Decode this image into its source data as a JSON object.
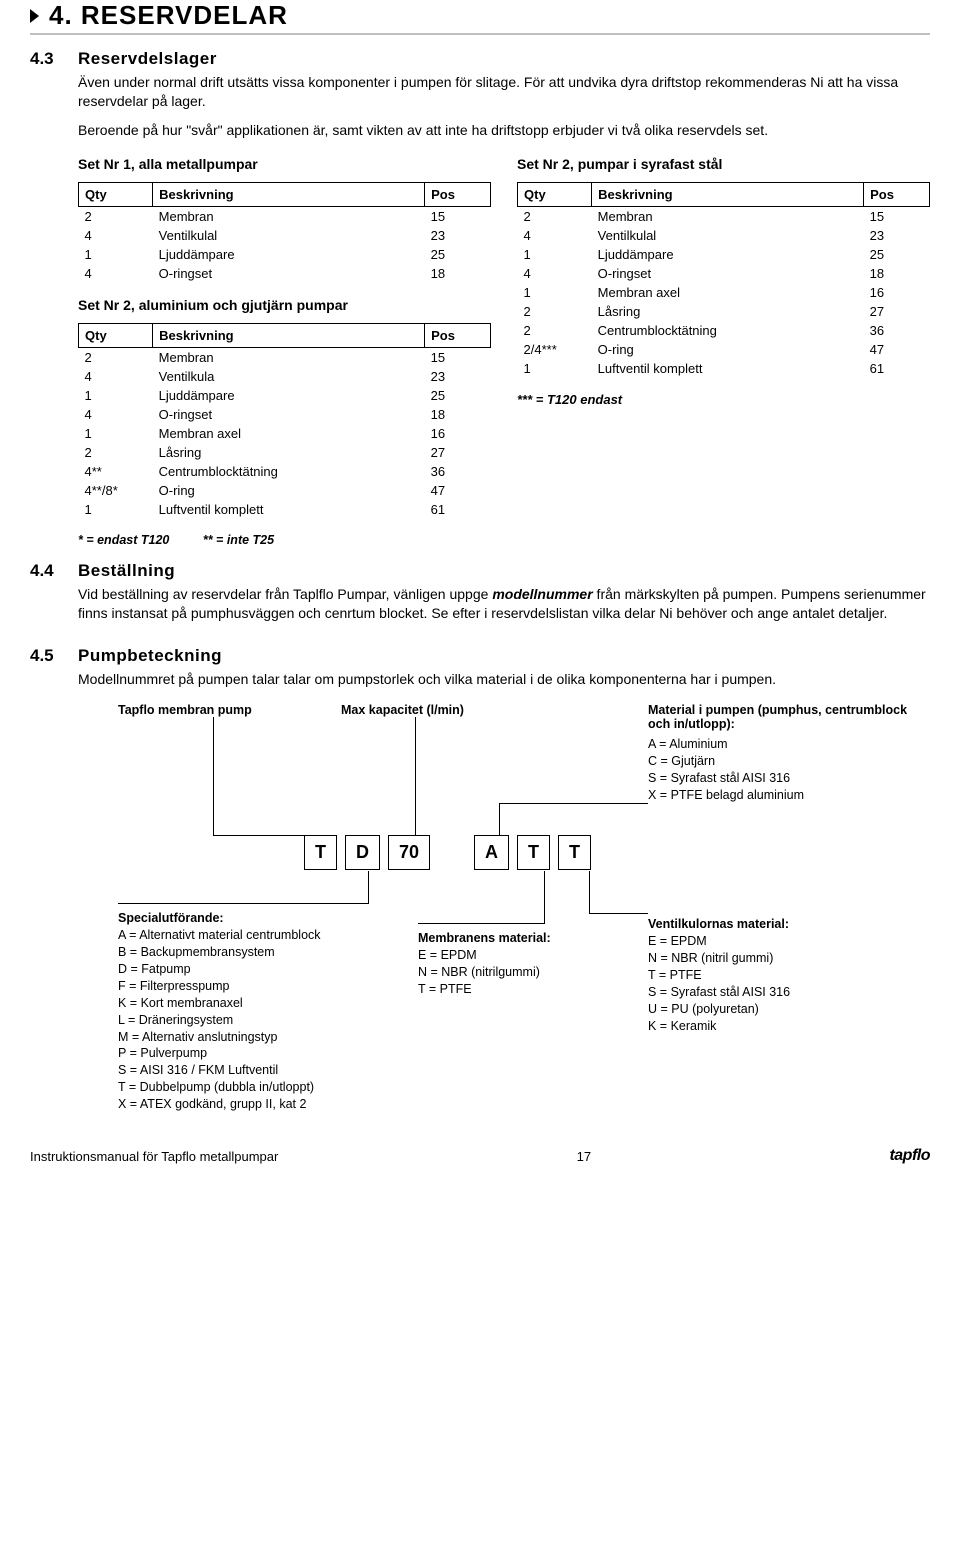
{
  "header": {
    "title": "4. RESERVDELAR"
  },
  "sec43": {
    "num": "4.3",
    "title": "Reservdelslager",
    "p1": "Även under normal drift utsätts vissa komponenter i pumpen för slitage. För att undvika dyra driftstop rekommenderas Ni att ha vissa reservdelar på lager.",
    "p2": "Beroende på hur \"svår\" applikationen är, samt vikten av att inte ha driftstopp erbjuder vi två olika reservdels set."
  },
  "tables": {
    "headers": {
      "qty": "Qty",
      "desc": "Beskrivning",
      "pos": "Pos"
    },
    "set1": {
      "title": "Set Nr 1, alla metallpumpar",
      "rows": [
        {
          "qty": "2",
          "desc": "Membran",
          "pos": "15"
        },
        {
          "qty": "4",
          "desc": "Ventilkulal",
          "pos": "23"
        },
        {
          "qty": "1",
          "desc": "Ljuddämpare",
          "pos": "25"
        },
        {
          "qty": "4",
          "desc": "O-ringset",
          "pos": "18"
        }
      ]
    },
    "set2al": {
      "title": "Set Nr 2, aluminium och gjutjärn pumpar",
      "rows": [
        {
          "qty": "2",
          "desc": "Membran",
          "pos": "15"
        },
        {
          "qty": "4",
          "desc": "Ventilkula",
          "pos": "23"
        },
        {
          "qty": "1",
          "desc": "Ljuddämpare",
          "pos": "25"
        },
        {
          "qty": "4",
          "desc": "O-ringset",
          "pos": "18"
        },
        {
          "qty": "1",
          "desc": "Membran axel",
          "pos": "16"
        },
        {
          "qty": "2",
          "desc": "Låsring",
          "pos": "27"
        },
        {
          "qty": "4**",
          "desc": "Centrumblocktätning",
          "pos": "36"
        },
        {
          "qty": "4**/8*",
          "desc": "O-ring",
          "pos": "47"
        },
        {
          "qty": "1",
          "desc": "Luftventil komplett",
          "pos": "61"
        }
      ]
    },
    "set2ss": {
      "title": "Set Nr 2, pumpar i syrafast stål",
      "rows": [
        {
          "qty": "2",
          "desc": "Membran",
          "pos": "15"
        },
        {
          "qty": "4",
          "desc": "Ventilkulal",
          "pos": "23"
        },
        {
          "qty": "1",
          "desc": "Ljuddämpare",
          "pos": "25"
        },
        {
          "qty": "4",
          "desc": "O-ringset",
          "pos": "18"
        },
        {
          "qty": "1",
          "desc": "Membran axel",
          "pos": "16"
        },
        {
          "qty": "2",
          "desc": "Låsring",
          "pos": "27"
        },
        {
          "qty": "2",
          "desc": "Centrumblocktätning",
          "pos": "36"
        },
        {
          "qty": "2/4***",
          "desc": "O-ring",
          "pos": "47"
        },
        {
          "qty": "1",
          "desc": "Luftventil komplett",
          "pos": "61"
        }
      ]
    },
    "note_right": "*** = T120 endast",
    "note_left_a": "* = endast T120",
    "note_left_b": "** = inte T25"
  },
  "sec44": {
    "num": "4.4",
    "title": "Beställning",
    "p1a": "Vid beställning av reservdelar från Taplflo Pumpar, vänligen uppge ",
    "p1b": "modellnummer",
    "p1c": " från märkskylten på pumpen. Pumpens serienummer finns instansat på pumphusväggen och cenrtum blocket. Se efter i reservdelslistan vilka delar Ni behöver och ange antalet detaljer."
  },
  "sec45": {
    "num": "4.5",
    "title": "Pumpbeteckning",
    "p1": "Modellnummret på pumpen talar talar om pumpstorlek och vilka material i de olika komponenterna har i pumpen."
  },
  "decode": {
    "labels": {
      "tapflo": "Tapflo membran pump",
      "max": "Max kapacitet (l/min)",
      "mat_header": "Material i pumpen (pumphus, centrumblock och in/utlopp):",
      "special": "Specialutförande:",
      "membran": "Membranens material:",
      "ventil": "Ventilkulornas material:"
    },
    "codes": {
      "c1": "T",
      "c2": "D",
      "c3": "70",
      "c4": "A",
      "c5": "T",
      "c6": "T"
    },
    "mat_pump": [
      "A   =   Aluminium",
      "C   =   Gjutjärn",
      "S   =   Syrafast stål AISI 316",
      "X   =   PTFE belagd aluminium"
    ],
    "special": [
      "A   =   Alternativt material centrumblock",
      "B   =   Backupmembransystem",
      "D   =   Fatpump",
      "F   =   Filterpresspump",
      "K   =   Kort membranaxel",
      "L   =   Dräneringsystem",
      "M  =   Alternativ anslutningstyp",
      "P   =   Pulverpump",
      "S   =   AISI 316 / FKM  Luftventil",
      "T   =   Dubbelpump (dubbla in/utloppt)",
      "X   =   ATEX godkänd, grupp II, kat 2"
    ],
    "membran": [
      "E   =   EPDM",
      "N   =   NBR (nitrilgummi)",
      "T   =   PTFE"
    ],
    "ventil": [
      "E   =   EPDM",
      "N   =   NBR (nitril gummi)",
      "T   =   PTFE",
      "S   =   Syrafast stål AISI 316",
      "U   =   PU (polyuretan)",
      "K   =   Keramik"
    ]
  },
  "footer": {
    "left": "Instruktionsmanual för Tapflo metallpumpar",
    "page": "17",
    "logo": "tapflo"
  }
}
